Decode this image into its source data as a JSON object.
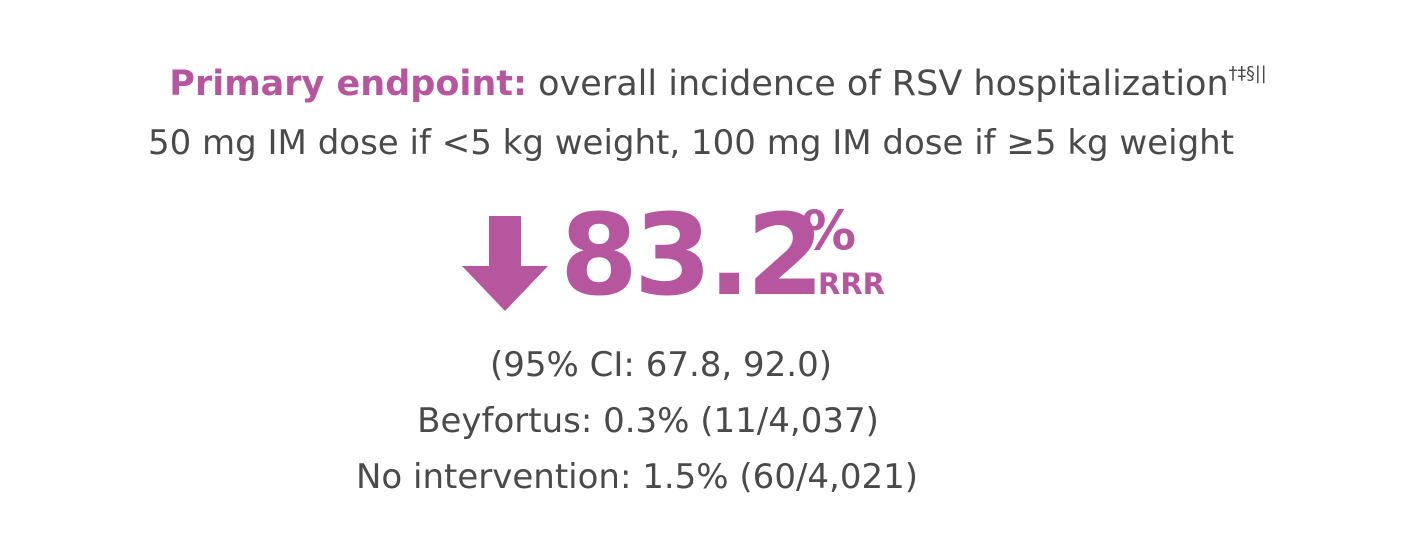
{
  "header": {
    "label": "Primary endpoint:",
    "title": "overall incidence of RSV hospitalization",
    "footnote_marks": "†‡§||",
    "subtitle": "50 mg IM dose if <5 kg weight, 100 mg IM dose if ≥5 kg weight"
  },
  "result": {
    "value": "83.2",
    "unit": "%",
    "measure": "RRR"
  },
  "details": [
    "(95% CI: 67.8, 92.0)",
    "Beyfortus: 0.3% (11/4,037)",
    "No intervention: 1.5% (60/4,021)"
  ]
}
